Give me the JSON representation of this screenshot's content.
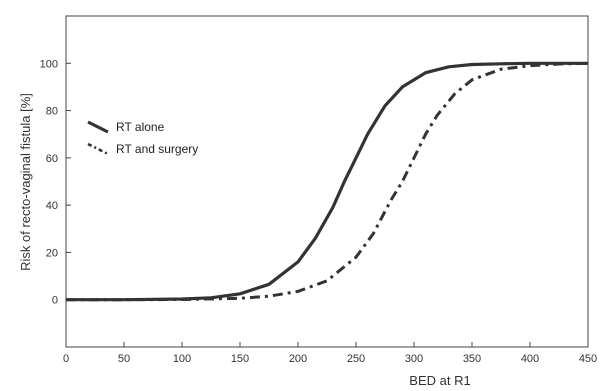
{
  "chart_data": {
    "type": "line",
    "xlabel": "BED at R1",
    "ylabel": "Risk of recto-vaginal fistula [%]",
    "xlim": [
      0,
      450
    ],
    "ylim": [
      -20,
      120
    ],
    "xticks": [
      0,
      50,
      100,
      150,
      200,
      250,
      300,
      350,
      400,
      450
    ],
    "yticks": [
      0,
      20,
      40,
      60,
      80,
      100
    ],
    "grid": false,
    "legend_position": "left",
    "series": [
      {
        "name": "RT alone",
        "style": "solid",
        "color": "#333333",
        "x": [
          0,
          50,
          100,
          125,
          150,
          175,
          200,
          215,
          230,
          240,
          250,
          260,
          275,
          290,
          310,
          330,
          350,
          375,
          400,
          450
        ],
        "y": [
          0,
          0,
          0.3,
          0.8,
          2.5,
          6.5,
          16,
          26,
          39,
          50,
          60,
          70,
          82,
          90,
          96,
          98.5,
          99.5,
          99.8,
          100,
          100
        ]
      },
      {
        "name": "RT and surgery",
        "style": "dashdot",
        "color": "#333333",
        "x": [
          0,
          50,
          100,
          150,
          175,
          200,
          225,
          250,
          265,
          280,
          290,
          300,
          310,
          320,
          335,
          350,
          375,
          400,
          425,
          450
        ],
        "y": [
          0,
          0,
          0.1,
          0.6,
          1.5,
          3.5,
          8,
          18,
          28,
          42,
          50,
          60,
          70,
          78,
          87,
          93,
          97.5,
          99,
          99.7,
          100
        ]
      }
    ]
  }
}
